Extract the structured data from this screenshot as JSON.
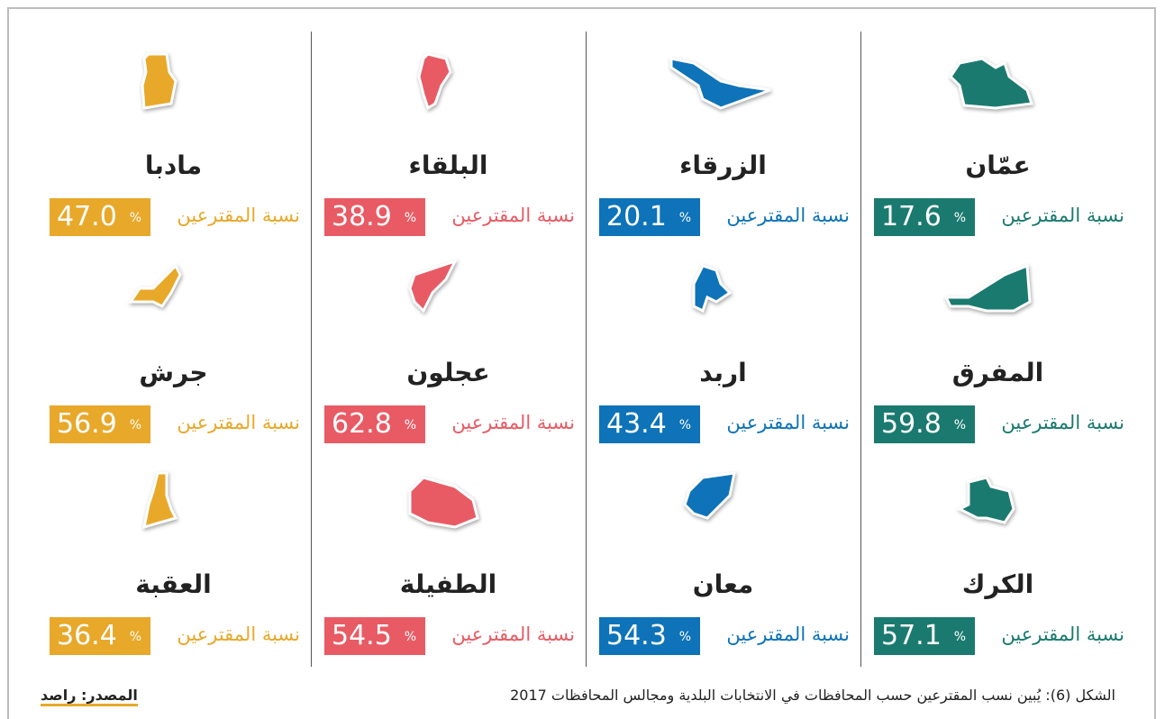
{
  "cards": [
    {
      "name": "عمّان",
      "label": "نسبة المقترعين",
      "value": "17.6",
      "unit": "%",
      "color": "#1b7a6f"
    },
    {
      "name": "الزرقاء",
      "label": "نسبة المقترعين",
      "value": "20.1",
      "unit": "%",
      "color": "#0e73b8"
    },
    {
      "name": "البلقاء",
      "label": "نسبة المقترعين",
      "value": "38.9",
      "unit": "%",
      "color": "#e85b64"
    },
    {
      "name": "مادبا",
      "label": "نسبة المقترعين",
      "value": "47.0",
      "unit": "%",
      "color": "#e8a82a"
    },
    {
      "name": "المفرق",
      "label": "نسبة المقترعين",
      "value": "59.8",
      "unit": "%",
      "color": "#1b7a6f"
    },
    {
      "name": "اربد",
      "label": "نسبة المقترعين",
      "value": "43.4",
      "unit": "%",
      "color": "#0e73b8"
    },
    {
      "name": "عجلون",
      "label": "نسبة المقترعين",
      "value": "62.8",
      "unit": "%",
      "color": "#e85b64"
    },
    {
      "name": "جرش",
      "label": "نسبة المقترعين",
      "value": "56.9",
      "unit": "%",
      "color": "#e8a82a"
    },
    {
      "name": "الكرك",
      "label": "نسبة المقترعين",
      "value": "57.1",
      "unit": "%",
      "color": "#1b7a6f"
    },
    {
      "name": "معان",
      "label": "نسبة المقترعين",
      "value": "54.3",
      "unit": "%",
      "color": "#0e73b8"
    },
    {
      "name": "الطفيلة",
      "label": "نسبة المقترعين",
      "value": "54.5",
      "unit": "%",
      "color": "#e85b64"
    },
    {
      "name": "العقبة",
      "label": "نسبة المقترعين",
      "value": "36.4",
      "unit": "%",
      "color": "#e8a82a"
    }
  ],
  "footer": {
    "caption": "الشكل (6): يُبين نسب المقترعين حسب المحافظات في الانتخابات البلدية ومجالس المحافظات 2017",
    "source": "المصدر: راصد"
  }
}
